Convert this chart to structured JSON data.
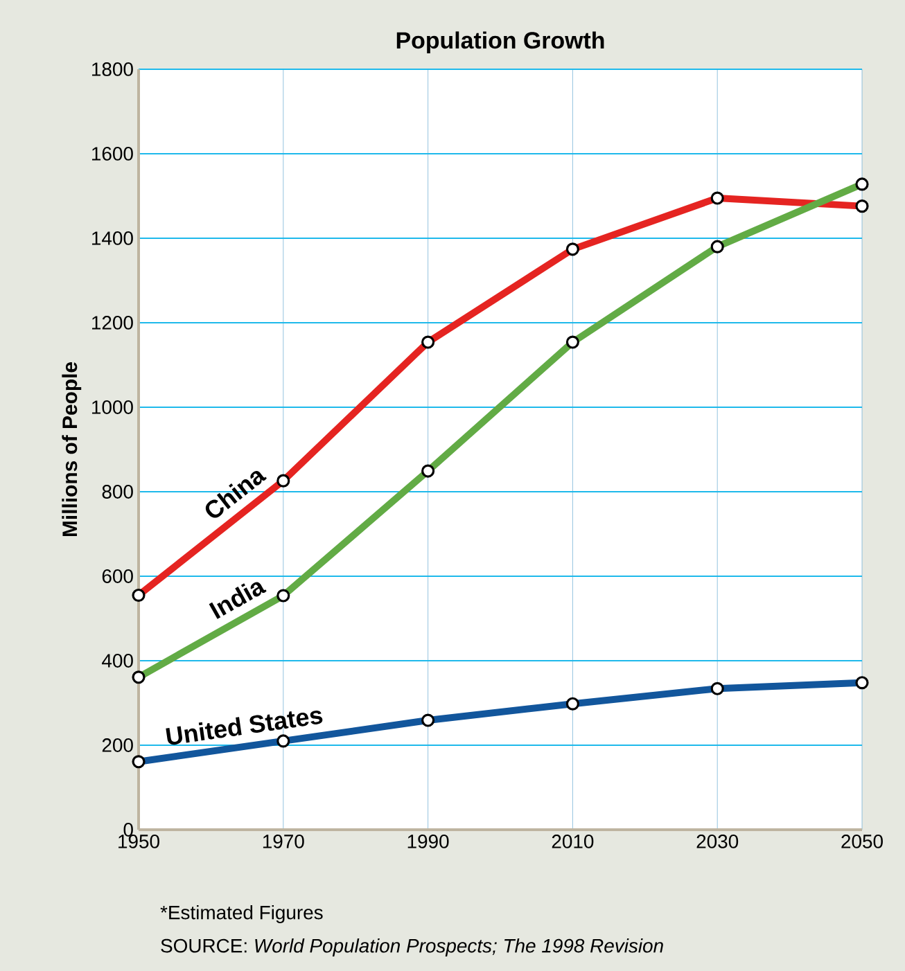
{
  "chart_data": {
    "type": "line",
    "title": "Population Growth",
    "ylabel": "Millions of People",
    "x": [
      1950,
      1970,
      1990,
      2010,
      2030,
      2050
    ],
    "series": [
      {
        "name": "China",
        "color": "#e52421",
        "values": [
          555,
          826,
          1154,
          1374,
          1495,
          1476
        ]
      },
      {
        "name": "India",
        "color": "#62ab45",
        "values": [
          361,
          554,
          849,
          1154,
          1380,
          1528
        ]
      },
      {
        "name": "United States",
        "color": "#12569c",
        "values": [
          161,
          210,
          259,
          298,
          334,
          348
        ]
      }
    ],
    "xlim": [
      1950,
      2050
    ],
    "xticks": [
      1950,
      1970,
      1990,
      2010,
      2030,
      2050
    ],
    "ylim": [
      0,
      1800
    ],
    "yticks": [
      0,
      200,
      400,
      600,
      800,
      1000,
      1200,
      1400,
      1600,
      1800
    ],
    "grid": true,
    "marker": "circle",
    "line_style": "solid",
    "annotations": [
      "*Estimated Figures",
      "SOURCE: *World Population Prospects; The 1998 Revision*"
    ]
  }
}
